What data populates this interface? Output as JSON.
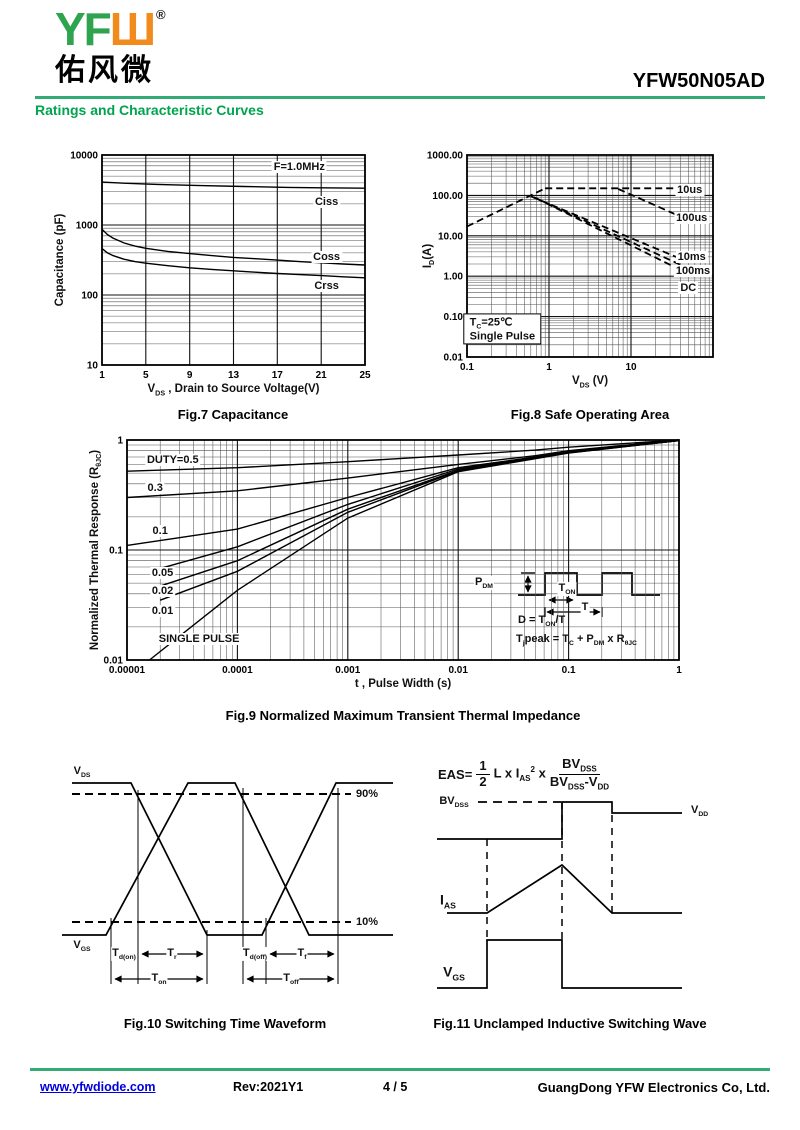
{
  "header": {
    "logo_green": "YF",
    "logo_orange": "Ш",
    "registered": "®",
    "logo_chinese": "佑风微",
    "part_number": "YFW50N05AD",
    "section_title": "Ratings and Characteristic Curves"
  },
  "footer": {
    "website": "www.yfwdiode.com",
    "revision": "Rev:2021Y1",
    "page": "4 / 5",
    "company": "GuangDong YFW Electronics Co, Ltd."
  },
  "colors": {
    "green_rule": "#33ab77",
    "green_title": "#00a44f",
    "logo_green": "#2ea44f",
    "logo_orange": "#f28b1d",
    "link_blue": "#0000dd",
    "ink": "#000000"
  },
  "chart_data": [
    {
      "key": "fig7",
      "type": "line",
      "title": "Fig.7 Capacitance",
      "xlabel": [
        {
          "t": "V"
        },
        {
          "sub": "DS"
        },
        {
          "t": " , Drain to Source Voltage(V)"
        }
      ],
      "ylabel": [
        {
          "t": "Capacitance (pF)"
        }
      ],
      "x_axis": {
        "scale": "linear",
        "min": 1,
        "max": 25,
        "ticks": [
          {
            "v": 1,
            "l": "1"
          },
          {
            "v": 5,
            "l": "5"
          },
          {
            "v": 9,
            "l": "9"
          },
          {
            "v": 13,
            "l": "13"
          },
          {
            "v": 17,
            "l": "17"
          },
          {
            "v": 21,
            "l": "21"
          },
          {
            "v": 25,
            "l": "25"
          }
        ]
      },
      "y_axis": {
        "scale": "log",
        "min": 10,
        "max": 10000,
        "ticks": [
          {
            "v": 10,
            "l": "10"
          },
          {
            "v": 100,
            "l": "100"
          },
          {
            "v": 1000,
            "l": "1000"
          },
          {
            "v": 10000,
            "l": "10000"
          }
        ]
      },
      "note": "F=1.0MHz",
      "series": [
        {
          "name": "Ciss",
          "points": [
            [
              1,
              4100
            ],
            [
              3,
              3950
            ],
            [
              6,
              3800
            ],
            [
              10,
              3650
            ],
            [
              14,
              3550
            ],
            [
              18,
              3450
            ],
            [
              21,
              3400
            ],
            [
              25,
              3350
            ]
          ]
        },
        {
          "name": "Coss",
          "points": [
            [
              1,
              870
            ],
            [
              1.5,
              730
            ],
            [
              2,
              650
            ],
            [
              3,
              555
            ],
            [
              4,
              500
            ],
            [
              5,
              465
            ],
            [
              7,
              420
            ],
            [
              9,
              390
            ],
            [
              11,
              365
            ],
            [
              13,
              345
            ],
            [
              15,
              330
            ],
            [
              17,
              315
            ],
            [
              19,
              300
            ],
            [
              21,
              288
            ],
            [
              23,
              277
            ],
            [
              25,
              268
            ]
          ]
        },
        {
          "name": "Crss",
          "points": [
            [
              1,
              460
            ],
            [
              1.5,
              400
            ],
            [
              2,
              365
            ],
            [
              3,
              325
            ],
            [
              4,
              300
            ],
            [
              5,
              285
            ],
            [
              7,
              262
            ],
            [
              9,
              245
            ],
            [
              11,
              232
            ],
            [
              13,
              222
            ],
            [
              15,
              212
            ],
            [
              17,
              203
            ],
            [
              19,
              196
            ],
            [
              21,
              189
            ],
            [
              23,
              182
            ],
            [
              25,
              176
            ]
          ]
        }
      ],
      "labels": [
        {
          "rich": [
            {
              "t": "F=1.0MHz"
            }
          ],
          "x": 19,
          "y": 6800,
          "boxed": true
        },
        {
          "rich": [
            {
              "t": "Ciss"
            }
          ],
          "x": 21.5,
          "y": 2100,
          "boxed": true
        },
        {
          "rich": [
            {
              "t": "Coss"
            }
          ],
          "x": 21.5,
          "y": 350,
          "boxed": true
        },
        {
          "rich": [
            {
              "t": "Crss"
            }
          ],
          "x": 21.5,
          "y": 135,
          "boxed": true
        }
      ]
    },
    {
      "key": "fig8",
      "type": "line",
      "title": "Fig.8 Safe Operating Area",
      "xlabel": [
        {
          "t": "V"
        },
        {
          "sub": "DS"
        },
        {
          "t": " (V)"
        }
      ],
      "ylabel": [
        {
          "t": "I"
        },
        {
          "sub": "D"
        },
        {
          "t": "(A)"
        }
      ],
      "x_axis": {
        "scale": "log",
        "min": 0.1,
        "max": 100,
        "ticks": [
          {
            "v": 0.1,
            "l": "0.1"
          },
          {
            "v": 1,
            "l": "1"
          },
          {
            "v": 10,
            "l": "10"
          }
        ]
      },
      "y_axis": {
        "scale": "log",
        "min": 0.01,
        "max": 1000,
        "ticks": [
          {
            "v": 0.01,
            "l": "0.01"
          },
          {
            "v": 0.1,
            "l": "0.10"
          },
          {
            "v": 1,
            "l": "1.00"
          },
          {
            "v": 10,
            "l": "10.00"
          },
          {
            "v": 100,
            "l": "100.00"
          },
          {
            "v": 1000,
            "l": "1000.00"
          }
        ]
      },
      "conditions": [
        "TC=25℃",
        "Single Pulse"
      ],
      "series": [
        {
          "name": "rdson-limit",
          "dash": "7,4",
          "points": [
            [
              0.1,
              17
            ],
            [
              0.9,
              150
            ]
          ]
        },
        {
          "name": "10us",
          "dash": "7,4",
          "points": [
            [
              0.9,
              150
            ],
            [
              40,
              150
            ]
          ]
        },
        {
          "name": "100us",
          "dash": "7,4",
          "points": [
            [
              7,
              144
            ],
            [
              45,
              27
            ]
          ]
        },
        {
          "name": "10ms",
          "dash": "7,4",
          "points": [
            [
              0.6,
              95
            ],
            [
              42,
              2.6
            ]
          ]
        },
        {
          "name": "100ms",
          "dash": "7,4",
          "points": [
            [
              0.65,
              90
            ],
            [
              43,
              1.8
            ]
          ]
        },
        {
          "name": "DC",
          "dash": "7,4",
          "points": [
            [
              0.7,
              85
            ],
            [
              44,
              1.3
            ]
          ]
        }
      ],
      "labels": [
        {
          "rich": [
            {
              "t": "10us"
            }
          ],
          "x": 52,
          "y": 140,
          "boxed": true
        },
        {
          "rich": [
            {
              "t": "100us"
            }
          ],
          "x": 55,
          "y": 27,
          "boxed": true
        },
        {
          "rich": [
            {
              "t": "10ms"
            }
          ],
          "x": 55,
          "y": 3,
          "boxed": true
        },
        {
          "rich": [
            {
              "t": "100ms"
            }
          ],
          "x": 57,
          "y": 1.35,
          "boxed": true
        },
        {
          "rich": [
            {
              "t": "DC"
            }
          ],
          "x": 50,
          "y": 0.5,
          "boxed": true
        },
        {
          "lines": [
            [
              {
                "t": "T"
              },
              {
                "sub": "C"
              },
              {
                "t": "=25℃"
              }
            ],
            [
              {
                "t": "Single Pulse"
              }
            ]
          ],
          "x": 0.27,
          "y": 0.05,
          "boxed": true,
          "border": true
        }
      ]
    },
    {
      "key": "fig9",
      "type": "line",
      "title": "Fig.9 Normalized Maximum Transient Thermal Impedance",
      "xlabel": [
        {
          "t": "t , Pulse Width (s)"
        }
      ],
      "ylabel": [
        {
          "t": "Normalized Thermal Response (R"
        },
        {
          "sub": "θJC"
        },
        {
          "t": ")"
        }
      ],
      "x_axis": {
        "scale": "log",
        "min": 1e-05,
        "max": 1,
        "ticks": [
          {
            "v": 1e-05,
            "l": "0.00001"
          },
          {
            "v": 0.0001,
            "l": "0.0001"
          },
          {
            "v": 0.001,
            "l": "0.001"
          },
          {
            "v": 0.01,
            "l": "0.01"
          },
          {
            "v": 0.1,
            "l": "0.1"
          },
          {
            "v": 1,
            "l": "1"
          }
        ]
      },
      "y_axis": {
        "scale": "log",
        "min": 0.01,
        "max": 1,
        "ticks": [
          {
            "v": 0.01,
            "l": "0.01"
          },
          {
            "v": 0.1,
            "l": "0.1"
          },
          {
            "v": 1,
            "l": "1"
          }
        ]
      },
      "series": [
        {
          "name": "duty-0.5",
          "points": [
            [
              1e-05,
              0.52
            ],
            [
              0.0001,
              0.56
            ],
            [
              0.001,
              0.635
            ],
            [
              0.01,
              0.73
            ],
            [
              0.05,
              0.81
            ],
            [
              0.1,
              0.86
            ],
            [
              1,
              1.0
            ]
          ]
        },
        {
          "name": "duty-0.3",
          "points": [
            [
              1e-05,
              0.3
            ],
            [
              0.0001,
              0.345
            ],
            [
              0.001,
              0.45
            ],
            [
              0.01,
              0.6
            ],
            [
              0.05,
              0.72
            ],
            [
              0.1,
              0.8
            ],
            [
              1,
              1.0
            ]
          ]
        },
        {
          "name": "duty-0.1",
          "points": [
            [
              1e-05,
              0.11
            ],
            [
              0.0001,
              0.155
            ],
            [
              0.001,
              0.3
            ],
            [
              0.01,
              0.56
            ],
            [
              0.05,
              0.7
            ],
            [
              0.1,
              0.78
            ],
            [
              1,
              0.99
            ]
          ]
        },
        {
          "name": "duty-0.05",
          "points": [
            [
              2e-05,
              0.068
            ],
            [
              0.0001,
              0.107
            ],
            [
              0.001,
              0.26
            ],
            [
              0.01,
              0.545
            ],
            [
              0.1,
              0.775
            ],
            [
              1,
              0.99
            ]
          ]
        },
        {
          "name": "duty-0.02",
          "points": [
            [
              2e-05,
              0.047
            ],
            [
              0.0001,
              0.08
            ],
            [
              0.001,
              0.235
            ],
            [
              0.01,
              0.53
            ],
            [
              0.1,
              0.77
            ],
            [
              1,
              0.99
            ]
          ]
        },
        {
          "name": "duty-0.01",
          "points": [
            [
              2e-05,
              0.035
            ],
            [
              0.0001,
              0.064
            ],
            [
              0.001,
              0.22
            ],
            [
              0.01,
              0.525
            ],
            [
              0.1,
              0.765
            ],
            [
              1,
              0.99
            ]
          ]
        },
        {
          "name": "single-pulse",
          "points": [
            [
              1.6e-05,
              0.01
            ],
            [
              0.0001,
              0.043
            ],
            [
              0.001,
              0.195
            ],
            [
              0.01,
              0.515
            ],
            [
              0.1,
              0.76
            ],
            [
              1,
              0.99
            ]
          ]
        }
      ],
      "labels": [
        {
          "rich": [
            {
              "t": "DUTY=0.5"
            }
          ],
          "x": 2.6e-05,
          "y": 0.66,
          "boxed": true
        },
        {
          "rich": [
            {
              "t": "0.3"
            }
          ],
          "x": 1.8e-05,
          "y": 0.37,
          "boxed": true
        },
        {
          "rich": [
            {
              "t": "0.1"
            }
          ],
          "x": 2e-05,
          "y": 0.15,
          "boxed": true
        },
        {
          "rich": [
            {
              "t": "0.05"
            }
          ],
          "x": 2.1e-05,
          "y": 0.062,
          "boxed": true
        },
        {
          "rich": [
            {
              "t": "0.02"
            }
          ],
          "x": 2.1e-05,
          "y": 0.042,
          "boxed": true
        },
        {
          "rich": [
            {
              "t": "0.01"
            }
          ],
          "x": 2.1e-05,
          "y": 0.028,
          "boxed": true
        },
        {
          "rich": [
            {
              "t": "SINGLE PULSE"
            }
          ],
          "x": 4.5e-05,
          "y": 0.0155,
          "boxed": true
        }
      ],
      "inset": {
        "pdm": [
          {
            "t": "P"
          },
          {
            "sub": "DM"
          }
        ],
        "ton": [
          {
            "t": "T"
          },
          {
            "sub": "ON"
          }
        ],
        "t": [
          {
            "t": "T"
          }
        ],
        "duty_eq": [
          {
            "t": "D = T"
          },
          {
            "sub": "ON"
          },
          {
            "t": "/T"
          }
        ],
        "tj_eq": [
          {
            "t": "T"
          },
          {
            "sub": "j"
          },
          {
            "t": "peak = T"
          },
          {
            "sub": "C"
          },
          {
            "t": " + P"
          },
          {
            "sub": "DM"
          },
          {
            "t": " x R"
          },
          {
            "sub": "θJC"
          }
        ]
      }
    }
  ],
  "fig10": {
    "caption": "Fig.10 Switching Time Waveform",
    "labels": {
      "vds": [
        {
          "t": "V"
        },
        {
          "sub": "DS"
        }
      ],
      "vgs": [
        {
          "t": "V"
        },
        {
          "sub": "GS"
        }
      ],
      "p90": [
        {
          "t": "90%"
        }
      ],
      "p10": [
        {
          "t": "10%"
        }
      ],
      "td_on": [
        {
          "t": "T"
        },
        {
          "sub": "d(on)"
        }
      ],
      "tr": [
        {
          "t": "T"
        },
        {
          "sub": "r"
        }
      ],
      "td_off": [
        {
          "t": "T"
        },
        {
          "sub": "d(off)"
        }
      ],
      "tf": [
        {
          "t": "T"
        },
        {
          "sub": "f"
        }
      ],
      "ton": [
        {
          "t": "T"
        },
        {
          "sub": "on"
        }
      ],
      "toff": [
        {
          "t": "T"
        },
        {
          "sub": "off"
        }
      ]
    }
  },
  "fig11": {
    "caption": "Fig.11 Unclamped Inductive Switching Wave",
    "labels": {
      "bvdss": [
        {
          "t": "BV"
        },
        {
          "sub": "DSS"
        }
      ],
      "vdd": [
        {
          "t": "V"
        },
        {
          "sub": "DD"
        }
      ],
      "ias": [
        {
          "t": "I"
        },
        {
          "sub": "AS"
        }
      ],
      "vgs": [
        {
          "t": "V"
        },
        {
          "sub": "GS"
        }
      ]
    },
    "formula": {
      "lhs": "EAS=",
      "f1_num": "1",
      "f1_den": "2",
      "mid": [
        {
          "t": "L x I"
        },
        {
          "sub": "AS"
        },
        {
          "sup": "2"
        },
        {
          "t": " x"
        }
      ],
      "f2_num": [
        {
          "t": "BV"
        },
        {
          "sub": "DSS"
        }
      ],
      "f2_den": [
        {
          "t": "BV"
        },
        {
          "sub": "DSS"
        },
        {
          "t": "-V"
        },
        {
          "sub": "DD"
        }
      ]
    }
  }
}
